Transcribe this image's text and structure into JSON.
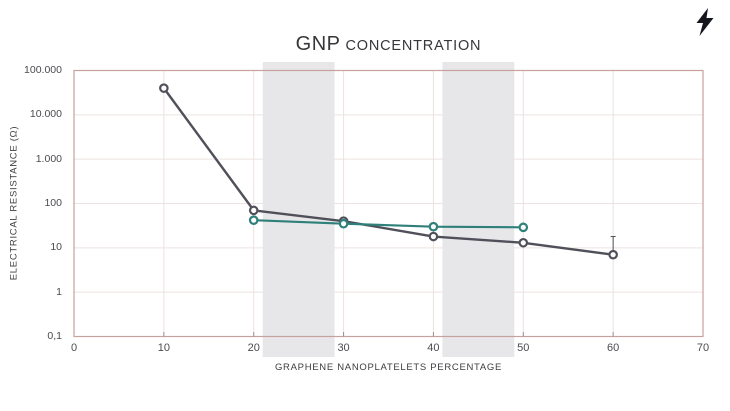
{
  "header": {
    "title_main": "GNP",
    "title_sub": "CONCENTRATION"
  },
  "icons": {
    "corner_icon": "lightning-bolt"
  },
  "colors": {
    "background": "#ffffff",
    "plot_border": "#c7a19d",
    "gridline": "#ece2e1",
    "band": "#e7e7e9",
    "tick_mark": "#9b8f8e",
    "title_text": "#36363b",
    "tick_text": "#4b4b50",
    "icon": "#14161c",
    "marker_fill": "#fcfcfd"
  },
  "chart_data": {
    "type": "line",
    "title": "GNP CONCENTRATION",
    "xlabel": "GRAPHENE NANOPLATELETS PERCENTAGE",
    "ylabel": "ELECTRICAL RESISTANCE (Ω)",
    "xlim": [
      0,
      70
    ],
    "x_ticks": [
      0,
      10,
      20,
      30,
      40,
      50,
      60,
      70
    ],
    "x_tick_labels": [
      "0",
      "10",
      "20",
      "30",
      "40",
      "50",
      "60",
      "70"
    ],
    "y_scale": "log",
    "ylim": [
      0.1,
      100000
    ],
    "y_tick_values": [
      100000,
      10000,
      1000,
      100,
      10,
      1,
      0.1
    ],
    "y_tick_labels": [
      "100.000",
      "10.000",
      "1.000",
      "100",
      "10",
      "1",
      "0,1"
    ],
    "grid": true,
    "legend": "none",
    "highlight_bands": [
      {
        "x1": 21,
        "x2": 29
      },
      {
        "x1": 41,
        "x2": 49
      }
    ],
    "series": [
      {
        "name": "dark-gray-series",
        "color": "#50505a",
        "x": [
          10,
          20,
          30,
          40,
          50,
          60
        ],
        "y": [
          40000,
          70,
          40,
          18,
          13,
          7
        ],
        "error_hi": [
          null,
          null,
          null,
          null,
          null,
          18
        ],
        "error_lo": [
          null,
          null,
          null,
          null,
          null,
          null
        ]
      },
      {
        "name": "teal-series",
        "color": "#2f807a",
        "x": [
          20,
          30,
          40,
          50
        ],
        "y": [
          42,
          35,
          30,
          29
        ],
        "error_hi": [
          null,
          null,
          33,
          null
        ],
        "error_lo": [
          null,
          null,
          27,
          null
        ]
      }
    ]
  }
}
